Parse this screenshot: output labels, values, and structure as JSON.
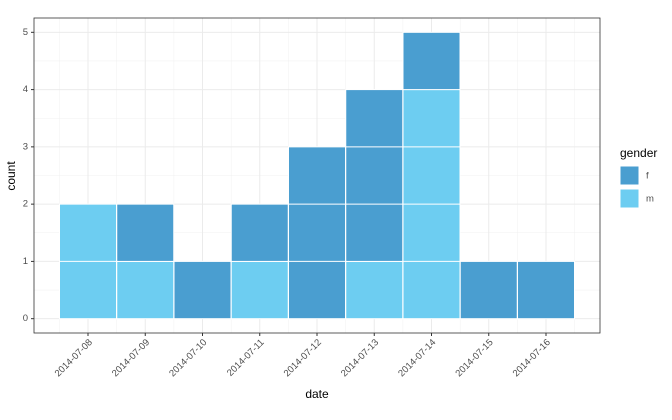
{
  "chart_data": {
    "type": "bar",
    "stacked": true,
    "x_label": "date",
    "y_label": "count",
    "legend_title": "gender",
    "categories": [
      "2014-07-08",
      "2014-07-09",
      "2014-07-10",
      "2014-07-11",
      "2014-07-12",
      "2014-07-13",
      "2014-07-14",
      "2014-07-15",
      "2014-07-16"
    ],
    "series": [
      {
        "name": "f",
        "color": "#4a9ed0",
        "values": [
          0,
          1,
          1,
          1,
          3,
          3,
          1,
          1,
          1
        ]
      },
      {
        "name": "m",
        "color": "#6dcdf1",
        "values": [
          2,
          1,
          0,
          1,
          0,
          1,
          4,
          0,
          0
        ]
      }
    ],
    "ylim": [
      -0.25,
      5.25
    ],
    "yticks": [
      0,
      1,
      2,
      3,
      4,
      5
    ],
    "grid": true,
    "legend": "right"
  }
}
